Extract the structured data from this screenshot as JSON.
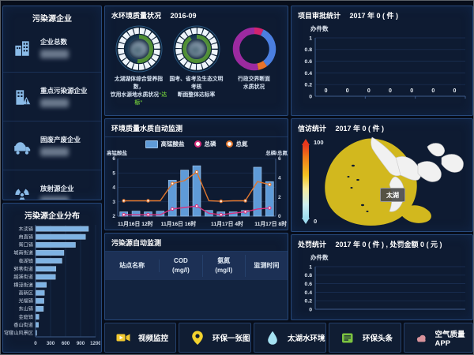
{
  "colors": {
    "panel_border": "#27497c",
    "bar_blue": "#5f9bd8",
    "dist_bar_blue": "#7fb3e3",
    "line_orange": "#e0762e",
    "line_pink": "#d8327e",
    "gauge_green": "#4e8f2f",
    "donut_purple": "#9c2aa0",
    "donut_blue": "#4b7fe0",
    "donut_orange": "#e8732a",
    "donut_crimson": "#d1246e",
    "lake_yellow": "#d2b81e",
    "land_white": "#f1f1f1",
    "badge_green": "#6abf3a",
    "icon_blue": "#8abbe8",
    "icon_yellow": "#f2c930",
    "icon_cyan": "#a5e2f3",
    "icon_green": "#7cc340",
    "icon_rose": "#d9939c"
  },
  "sidebar": {
    "title": "污染源企业",
    "items": [
      {
        "label": "企业总数",
        "icon": "building-icon"
      },
      {
        "label": "重点污染源企业",
        "icon": "building-alert-icon"
      },
      {
        "label": "固废产废企业",
        "icon": "waste-truck-icon"
      },
      {
        "label": "放射源企业",
        "icon": "radiation-icon"
      }
    ]
  },
  "water_status": {
    "title": "水环境质量状况",
    "date": "2016-09",
    "gauges": [
      {
        "line1": "太湖湖体综合营养指数，",
        "line2": "饮用水源地水质状况",
        "badge": "“达标”"
      },
      {
        "line1": "国考、省考及生态文明考核",
        "line2": "断面整体达标率",
        "badge": ""
      }
    ]
  },
  "pollution_table": {
    "title": "污染源自动监测",
    "columns": [
      {
        "l1": "站点名称",
        "l2": ""
      },
      {
        "l1": "COD",
        "l2": "(mg/l)"
      },
      {
        "l1": "氨氮",
        "l2": "(mg/l)"
      },
      {
        "l1": "监测时间",
        "l2": ""
      }
    ],
    "rows": []
  },
  "petition": {
    "title": "信访统计",
    "period": "2017 年 0 ( 件 )",
    "map_label": "太湖",
    "scale_max": "100",
    "scale_min": "0"
  },
  "bottom_bar": {
    "buttons": [
      {
        "label": "视频监控",
        "icon": "video-camera-icon"
      },
      {
        "label": "环保一张图",
        "icon": "map-pin-icon"
      },
      {
        "label": "太湖水环境",
        "icon": "water-drop-icon"
      },
      {
        "label": "环保头条",
        "icon": "newspaper-icon"
      },
      {
        "label": "空气质量APP",
        "icon": "cloud-icon"
      }
    ]
  },
  "chart_data": [
    {
      "id": "enterprise_distribution",
      "type": "bar",
      "orientation": "horizontal",
      "title": "污染源企业分布",
      "categories": [
        "木渎镇",
        "甪直镇",
        "胥口镇",
        "城南街道",
        "临湖镇",
        "郭巷街道",
        "越溪街道",
        "横泾街道",
        "高新区",
        "光福镇",
        "东山镇",
        "金庭镇",
        "香山街道",
        "穹窿山风景区"
      ],
      "values": [
        1050,
        990,
        790,
        560,
        520,
        400,
        390,
        210,
        170,
        160,
        150,
        60,
        50,
        15
      ],
      "xlim": [
        0,
        1200
      ],
      "xticks": [
        0,
        300,
        600,
        900,
        1200
      ],
      "bar_color": "#7fb3e3"
    },
    {
      "id": "water_auto_monitor",
      "type": "combo",
      "title": "环境质量水质自动监测",
      "ylabel_left": "高锰酸盐",
      "ylabel_right": "总磷/总氮",
      "ylim_left": [
        2,
        6
      ],
      "yticks_left": [
        2,
        3,
        4,
        5,
        6
      ],
      "ylim_right": [
        0,
        6
      ],
      "yticks_right": [
        0,
        2,
        4,
        6
      ],
      "n_points": 13,
      "x_labels": [
        "11月16日 12时",
        "11月16日 16时",
        "11月17日 4时",
        "11月17日 8时"
      ],
      "x_label_positions": [
        0,
        4.5,
        8.5,
        12
      ],
      "series": [
        {
          "name": "高锰酸盐",
          "type": "bar",
          "axis": "left",
          "color": "#5f9bd8",
          "values": [
            2.3,
            2.35,
            2.3,
            2.35,
            4.5,
            5.2,
            5.5,
            2.4,
            2.3,
            2.3,
            2.4,
            5.4,
            4.4
          ]
        },
        {
          "name": "总磷",
          "type": "line",
          "axis": "right",
          "color": "#d8327e",
          "values": [
            0.15,
            0.15,
            0.15,
            0.15,
            0.75,
            0.9,
            1.05,
            0.3,
            0.15,
            0.3,
            0.45,
            0.75,
            0.85
          ]
        },
        {
          "name": "总氮",
          "type": "line",
          "axis": "right",
          "color": "#e0762e",
          "values": [
            1.6,
            1.6,
            1.6,
            1.6,
            3.4,
            3.7,
            4.6,
            1.6,
            1.55,
            1.6,
            1.6,
            3.6,
            3.3
          ]
        }
      ]
    },
    {
      "id": "project_approval",
      "type": "bar",
      "title": "项目审批统计",
      "period": "2017 年 0 ( 件 )",
      "ylabel": "办件数",
      "ylim": [
        0,
        1
      ],
      "yticks": [
        1,
        0.8,
        0.6,
        0.4,
        0.2,
        0
      ],
      "values": [
        0,
        0,
        0,
        0,
        0,
        0,
        0
      ],
      "data_labels": [
        "0",
        "0",
        "0",
        "0",
        "0",
        "0",
        "0"
      ]
    },
    {
      "id": "penalty_stats",
      "type": "bar",
      "title": "处罚统计",
      "period": "2017 年 0 ( 件 ) , 处罚金额 0 ( 元 )",
      "ylabel": "办件数",
      "ylim": [
        0,
        1
      ],
      "yticks": [
        1,
        0.8,
        0.6,
        0.4,
        0.2,
        0
      ],
      "values": []
    },
    {
      "id": "boundary_section_quality",
      "type": "pie",
      "label": [
        "行政交界断面",
        "水质状况"
      ],
      "segments": [
        {
          "color": "#d1246e",
          "fraction": 0.07
        },
        {
          "color": "#4b7fe0",
          "fraction": 0.33
        },
        {
          "color": "#e8732a",
          "fraction": 0.07
        },
        {
          "color": "#9c2aa0",
          "fraction": 0.53
        }
      ]
    },
    {
      "id": "gauge_taihu_nutrition",
      "type": "gauge",
      "fraction": 0.52
    },
    {
      "id": "gauge_assessment_rate",
      "type": "gauge",
      "fraction": 0.92
    }
  ]
}
